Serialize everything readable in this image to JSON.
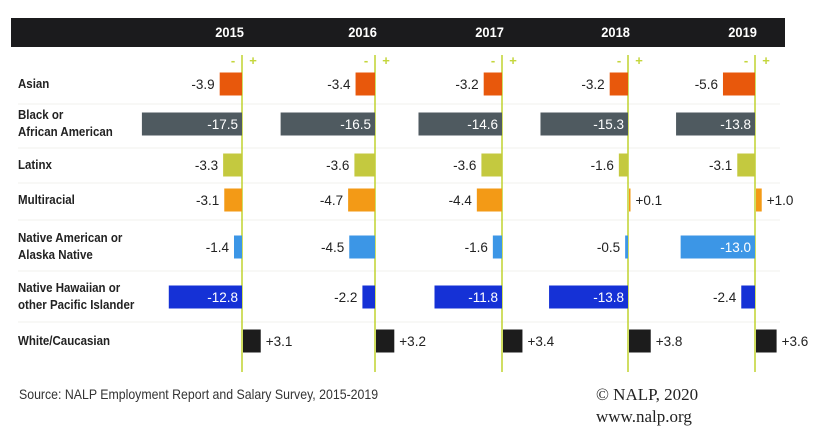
{
  "chart_data": {
    "type": "bar",
    "orientation": "horizontal-diverging",
    "title": "",
    "years": [
      "2015",
      "2016",
      "2017",
      "2018",
      "2019"
    ],
    "categories": [
      "Asian",
      "Black or African American",
      "Latinx",
      "Multiracial",
      "Native American or Alaska Native",
      "Native Hawaiian or other Pacific Islander",
      "White/Caucasian"
    ],
    "category_label_lines": [
      [
        "Asian"
      ],
      [
        "Black or",
        "African American"
      ],
      [
        "Latinx"
      ],
      [
        "Multiracial"
      ],
      [
        "Native American or",
        "Alaska Native"
      ],
      [
        "Native Hawaiian or",
        "other Pacific Islander"
      ],
      [
        "White/Caucasian"
      ]
    ],
    "series": [
      {
        "name": "2015",
        "values": [
          -3.9,
          -17.5,
          -3.3,
          -3.1,
          -1.4,
          -12.8,
          3.1
        ],
        "labels": [
          "-3.9",
          "-17.5",
          "-3.3",
          "-3.1",
          "-1.4",
          "-12.8",
          "+3.1"
        ]
      },
      {
        "name": "2016",
        "values": [
          -3.4,
          -16.5,
          -3.6,
          -4.7,
          -4.5,
          -2.2,
          3.2
        ],
        "labels": [
          "-3.4",
          "-16.5",
          "-3.6",
          "-4.7",
          "-4.5",
          "-2.2",
          "+3.2"
        ]
      },
      {
        "name": "2017",
        "values": [
          -3.2,
          -14.6,
          -3.6,
          -4.4,
          -1.6,
          -11.8,
          3.4
        ],
        "labels": [
          "-3.2",
          "-14.6",
          "-3.6",
          "-4.4",
          "-1.6",
          "-11.8",
          "+3.4"
        ]
      },
      {
        "name": "2018",
        "values": [
          -3.2,
          -15.3,
          -1.6,
          0.1,
          -0.5,
          -13.8,
          3.8
        ],
        "labels": [
          "-3.2",
          "-15.3",
          "-1.6",
          "+0.1",
          "-0.5",
          "-13.8",
          "+3.8"
        ]
      },
      {
        "name": "2019",
        "values": [
          -5.6,
          -13.8,
          -3.1,
          1.0,
          -13.0,
          -2.4,
          3.6
        ],
        "labels": [
          "-5.6",
          "-13.8",
          "-3.1",
          "+1.0",
          "-13.0",
          "-2.4",
          "+3.6"
        ]
      }
    ],
    "category_colors": [
      "#e8580c",
      "#4f5a60",
      "#c4c93f",
      "#f39a16",
      "#3c96e6",
      "#1531d6",
      "#1c1c1c"
    ],
    "axis_color": "#c4d63c",
    "minus_sign": "-",
    "plus_sign": "+",
    "grid": false,
    "legend": "none"
  },
  "footer": {
    "source": "Source: NALP Employment Report and Salary Survey, 2015-2019",
    "copyright": "© NALP, 2020",
    "website": "www.nalp.org"
  }
}
